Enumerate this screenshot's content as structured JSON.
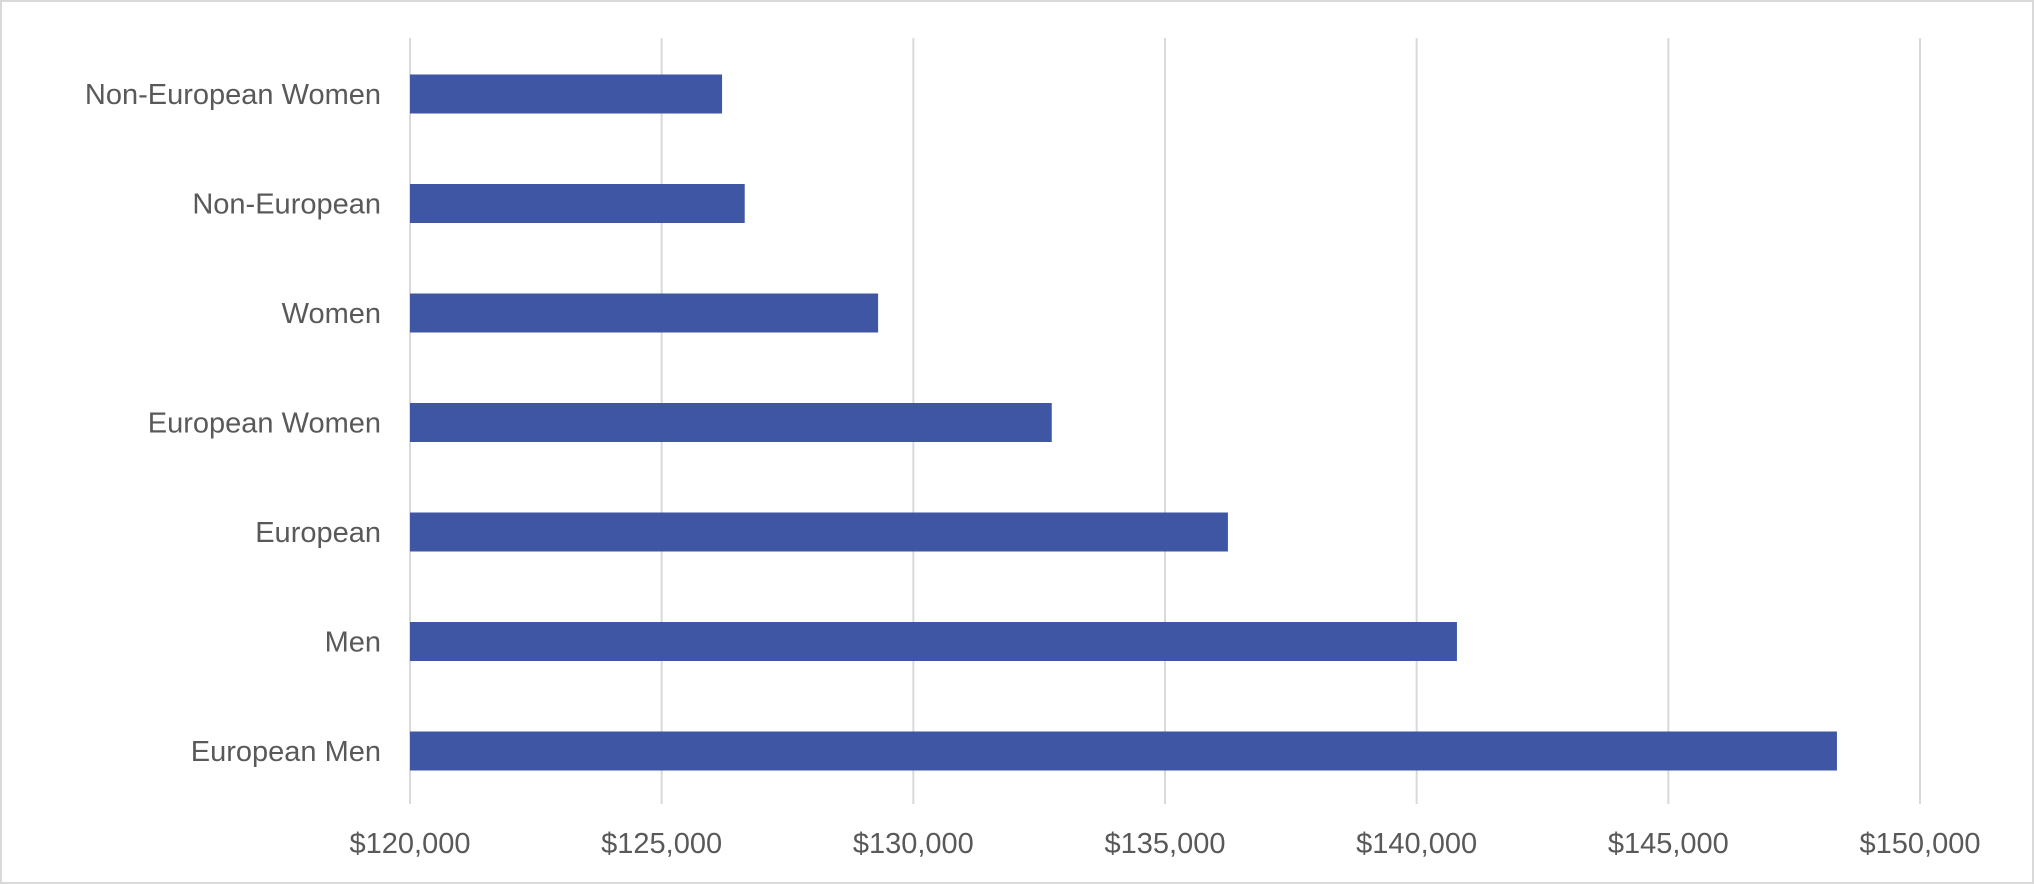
{
  "chart_data": {
    "type": "bar",
    "orientation": "horizontal",
    "categories": [
      "Non-European Women",
      "Non-European",
      "Women",
      "European Women",
      "European",
      "Men",
      "European Men"
    ],
    "values": [
      126200,
      126650,
      129300,
      132750,
      136250,
      140800,
      148350
    ],
    "x_ticks": [
      120000,
      125000,
      130000,
      135000,
      140000,
      145000,
      150000
    ],
    "x_tick_labels": [
      "$120,000",
      "$125,000",
      "$130,000",
      "$135,000",
      "$140,000",
      "$145,000",
      "$150,000"
    ],
    "xlim": [
      120000,
      150000
    ],
    "title": "",
    "xlabel": "",
    "ylabel": "",
    "grid": "vertical",
    "legend": "none",
    "colors": {
      "bar": "#3e56a3",
      "grid": "#d9d9d9",
      "text": "#595959"
    }
  }
}
